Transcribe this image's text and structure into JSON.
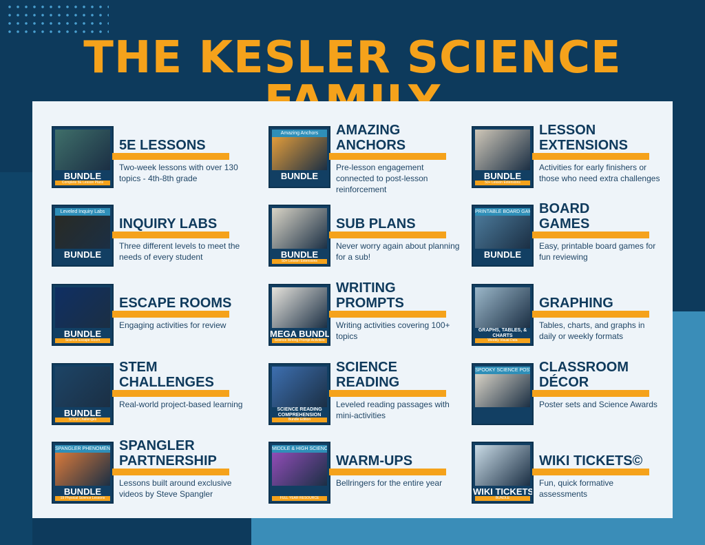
{
  "heading": "THE KESLER SCIENCE FAMILY",
  "colors": {
    "navy": "#0d3a5c",
    "orange": "#f5a21b",
    "panel": "#eef4f9",
    "light_blue": "#3a8db8"
  },
  "items": [
    {
      "title": "5E LESSONS",
      "desc": "Two-week lessons with over 130 topics - 4th-8th grade",
      "thumb": {
        "banner": "",
        "label": "BUNDLE",
        "cap": "Complete 5E Lesson Plans",
        "color": "#3f6f6a"
      }
    },
    {
      "title": "INQUIRY LABS",
      "desc": "Three different levels to meet the needs of every student",
      "thumb": {
        "banner": "Leveled Inquiry Labs",
        "label": "BUNDLE",
        "cap": "",
        "color": "#2a2a22"
      }
    },
    {
      "title": "ESCAPE ROOMS",
      "desc": "Engaging activities for review",
      "thumb": {
        "banner": "",
        "label": "BUNDLE",
        "cap": "Science Escape Room",
        "color": "#0f2f63"
      }
    },
    {
      "title": "STEM CHALLENGES",
      "desc": "Real-world project-based learning",
      "thumb": {
        "banner": "",
        "label": "BUNDLE",
        "cap": "STEM Challenges",
        "color": "#1c4466"
      }
    },
    {
      "title": "SPANGLER PARTNERSHIP",
      "desc": "Lessons built around exclusive videos by Steve Spangler",
      "thumb": {
        "banner": "SPANGLER PHENOMENON",
        "label": "BUNDLE",
        "cap": "19 Physical Science Lessons",
        "color": "#e9803a"
      }
    },
    {
      "title": "AMAZING ANCHORS",
      "desc": "Pre-lesson engagement connected to post-lesson reinforcement",
      "thumb": {
        "banner": "Amazing Anchors",
        "label": "BUNDLE",
        "cap": "",
        "color": "#f2a53a"
      }
    },
    {
      "title": "SUB PLANS",
      "desc": "Never worry again about planning for a sub!",
      "thumb": {
        "banner": "",
        "label": "BUNDLE",
        "cap": "50+ Lesson Extensions",
        "color": "#d9d4c6"
      }
    },
    {
      "title": "WRITING PROMPTS",
      "desc": "Writing activities covering 100+ topics",
      "thumb": {
        "banner": "",
        "label": "MEGA BUNDLE",
        "cap": "Science Writing Prompt Activities",
        "color": "#e6e3dc"
      }
    },
    {
      "title": "SCIENCE READING",
      "desc": "Leveled reading passages with mini-activities",
      "thumb": {
        "banner": "",
        "label": "SCIENCE READING COMPREHENSION",
        "cap": "Bundle Edition",
        "color": "#3d6fb0"
      }
    },
    {
      "title": "WARM-UPS",
      "desc": "Bellringers for the entire year",
      "thumb": {
        "banner": "MIDDLE & HIGH SCIENCE BELL-RINGERS",
        "label": "",
        "cap": "FULL YEAR RESOURCE",
        "color": "#9a4fc0"
      }
    },
    {
      "title": "LESSON EXTENSIONS",
      "desc": "Activities for early finishers or those who need extra challenges",
      "thumb": {
        "banner": "",
        "label": "BUNDLE",
        "cap": "50+ Lesson Extensions",
        "color": "#cfc7b8"
      }
    },
    {
      "title": "BOARD GAMES",
      "desc": "Easy, printable board games for fun reviewing",
      "thumb": {
        "banner": "PRINTABLE BOARD GAME",
        "label": "BUNDLE",
        "cap": "",
        "color": "#4f7fa0"
      }
    },
    {
      "title": "GRAPHING",
      "desc": "Tables, charts, and graphs in daily or weekly formats",
      "thumb": {
        "banner": "",
        "label": "GRAPHS, TABLES, & CHARTS",
        "cap": "Weekly Visual Data",
        "color": "#9bb7c9"
      }
    },
    {
      "title": "CLASSROOM DÉCOR",
      "desc": "Poster sets and Science Awards",
      "thumb": {
        "banner": "SPOOKY SCIENCE POSTERS",
        "label": "",
        "cap": "",
        "color": "#e8e0d0"
      }
    },
    {
      "title": "WIKI TICKETS©",
      "desc": "Fun, quick formative assessments",
      "thumb": {
        "banner": "",
        "label": "WIKI TICKETS",
        "cap": "BUNDLE",
        "color": "#c9dbe6"
      }
    }
  ]
}
